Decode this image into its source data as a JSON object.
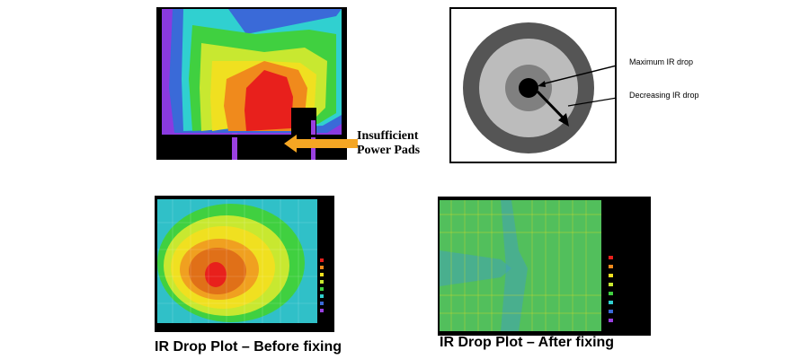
{
  "top_left": {
    "callout_line1": "Insufficient",
    "callout_line2": "Power Pads"
  },
  "top_right": {
    "max_label": "Maximum IR drop",
    "dec_label": "Decreasing IR drop"
  },
  "bottom": {
    "before_caption": "IR Drop Plot – Before fixing",
    "after_caption": "IR Drop Plot – After fixing"
  },
  "colors": {
    "hot": "#e8201c",
    "warm": "#f08a1c",
    "yellow": "#f0e020",
    "green": "#40d040",
    "cyan": "#30d0d0",
    "blue": "#3a6ad8",
    "purple": "#9a40e0",
    "arrow": "#f5a623"
  }
}
